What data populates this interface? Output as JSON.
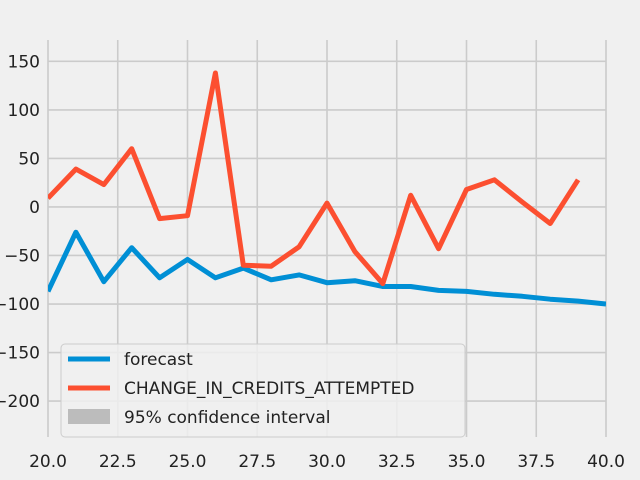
{
  "chart_data": {
    "type": "line",
    "xlim": [
      20.0,
      40.0
    ],
    "ylim": [
      -237,
      172
    ],
    "grid": true,
    "x_ticks": [
      20.0,
      22.5,
      25.0,
      27.5,
      30.0,
      32.5,
      35.0,
      37.5,
      40.0
    ],
    "x_tick_labels": [
      "20.0",
      "22.5",
      "25.0",
      "27.5",
      "30.0",
      "32.5",
      "35.0",
      "37.5",
      "40.0"
    ],
    "y_ticks": [
      -200,
      -150,
      -100,
      -50,
      0,
      50,
      100,
      150
    ],
    "y_tick_labels": [
      "−200",
      "−150",
      "−100",
      "−50",
      "0",
      "50",
      "100",
      "150"
    ],
    "legend_position": "lower-left",
    "series": [
      {
        "name": "forecast",
        "color": "#008fd5",
        "x": [
          20,
          21,
          22,
          23,
          24,
          25,
          26,
          27,
          28,
          29,
          30,
          31,
          32,
          33,
          34,
          35,
          36,
          37,
          38,
          39,
          40
        ],
        "y": [
          -87,
          -26,
          -77,
          -42,
          -73,
          -54,
          -73,
          -63,
          -75,
          -70,
          -78,
          -76,
          -82,
          -82,
          -86,
          -87,
          -90,
          -92,
          -95,
          -97,
          -100
        ]
      },
      {
        "name": "CHANGE_IN_CREDITS_ATTEMPTED",
        "color": "#fc4f30",
        "x": [
          20,
          21,
          22,
          23,
          24,
          25,
          26,
          27,
          28,
          29,
          30,
          31,
          32,
          33,
          34,
          35,
          36,
          37,
          38,
          39
        ],
        "y": [
          9,
          39,
          23,
          60,
          -12,
          -9,
          138,
          -60,
          -61,
          -41,
          4,
          -46,
          -79,
          12,
          -43,
          18,
          28,
          5,
          -17,
          28
        ]
      }
    ],
    "legend": {
      "entries": [
        {
          "label": "forecast",
          "kind": "line",
          "color": "#008fd5"
        },
        {
          "label": "CHANGE_IN_CREDITS_ATTEMPTED",
          "kind": "line",
          "color": "#fc4f30"
        },
        {
          "label": "95% confidence interval",
          "kind": "patch",
          "color": "#bcbcbc"
        }
      ]
    }
  }
}
